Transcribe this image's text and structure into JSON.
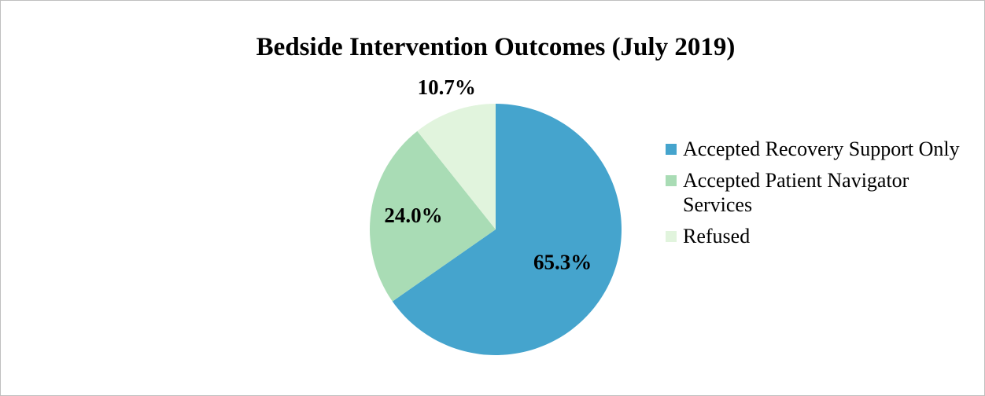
{
  "chart_data": {
    "type": "pie",
    "title": "Bedside Intervention Outcomes (July 2019)",
    "categories": [
      "Accepted Recovery Support Only",
      "Accepted Patient Navigator Services",
      "Refused"
    ],
    "values": [
      65.3,
      24.0,
      10.7
    ],
    "value_labels": [
      "65.3%",
      "24.0%",
      "10.7%"
    ],
    "colors": [
      "#45a4cd",
      "#a9dcb5",
      "#e1f4dd"
    ],
    "legend": "right"
  }
}
